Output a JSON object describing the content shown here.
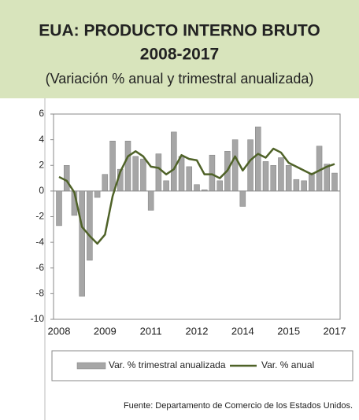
{
  "chart_data": {
    "type": "bar_line",
    "title": "EUA: PRODUCTO INTERNO BRUTO",
    "title_line2": "2008-2017",
    "subtitle": "(Variación % anual y trimestral anualizada)",
    "source": "Fuente:  Departamento de Comercio de los Estados Unidos.",
    "categories": [
      "2008",
      null,
      null,
      null,
      null,
      null,
      "2009",
      null,
      null,
      null,
      null,
      null,
      "2011",
      null,
      null,
      null,
      null,
      null,
      "2012",
      null,
      null,
      null,
      null,
      null,
      "2014",
      null,
      null,
      null,
      null,
      null,
      "2015",
      null,
      null,
      null,
      null,
      null,
      "2017"
    ],
    "series": [
      {
        "name": "Var. % trimestral anualizada",
        "type": "bar",
        "color": "#a6a6a6",
        "values": [
          -2.7,
          2.0,
          -1.9,
          -8.2,
          -5.4,
          -0.5,
          1.3,
          3.9,
          1.7,
          3.9,
          2.7,
          2.5,
          -1.5,
          2.9,
          0.8,
          4.6,
          2.7,
          1.9,
          0.5,
          0.1,
          2.8,
          0.8,
          3.1,
          4.0,
          -1.2,
          4.0,
          5.0,
          2.3,
          2.0,
          2.6,
          2.0,
          0.9,
          0.8,
          1.4,
          3.5,
          2.1,
          1.4
        ]
      },
      {
        "name": "Var. % anual",
        "type": "line",
        "color": "#4f6228",
        "values": [
          1.1,
          0.8,
          -0.1,
          -2.8,
          -3.5,
          -4.1,
          -3.4,
          -0.4,
          1.5,
          2.7,
          3.1,
          2.7,
          1.9,
          1.8,
          1.3,
          1.7,
          2.8,
          2.5,
          2.4,
          1.3,
          1.3,
          1.0,
          1.6,
          2.7,
          1.6,
          2.4,
          2.9,
          2.6,
          3.3,
          3.0,
          2.2,
          1.9,
          1.6,
          1.3,
          1.6,
          1.9,
          2.1
        ]
      }
    ],
    "ylim": [
      -10,
      6
    ],
    "yticks": [
      -10,
      -8,
      -6,
      -4,
      -2,
      0,
      2,
      4,
      6
    ]
  }
}
